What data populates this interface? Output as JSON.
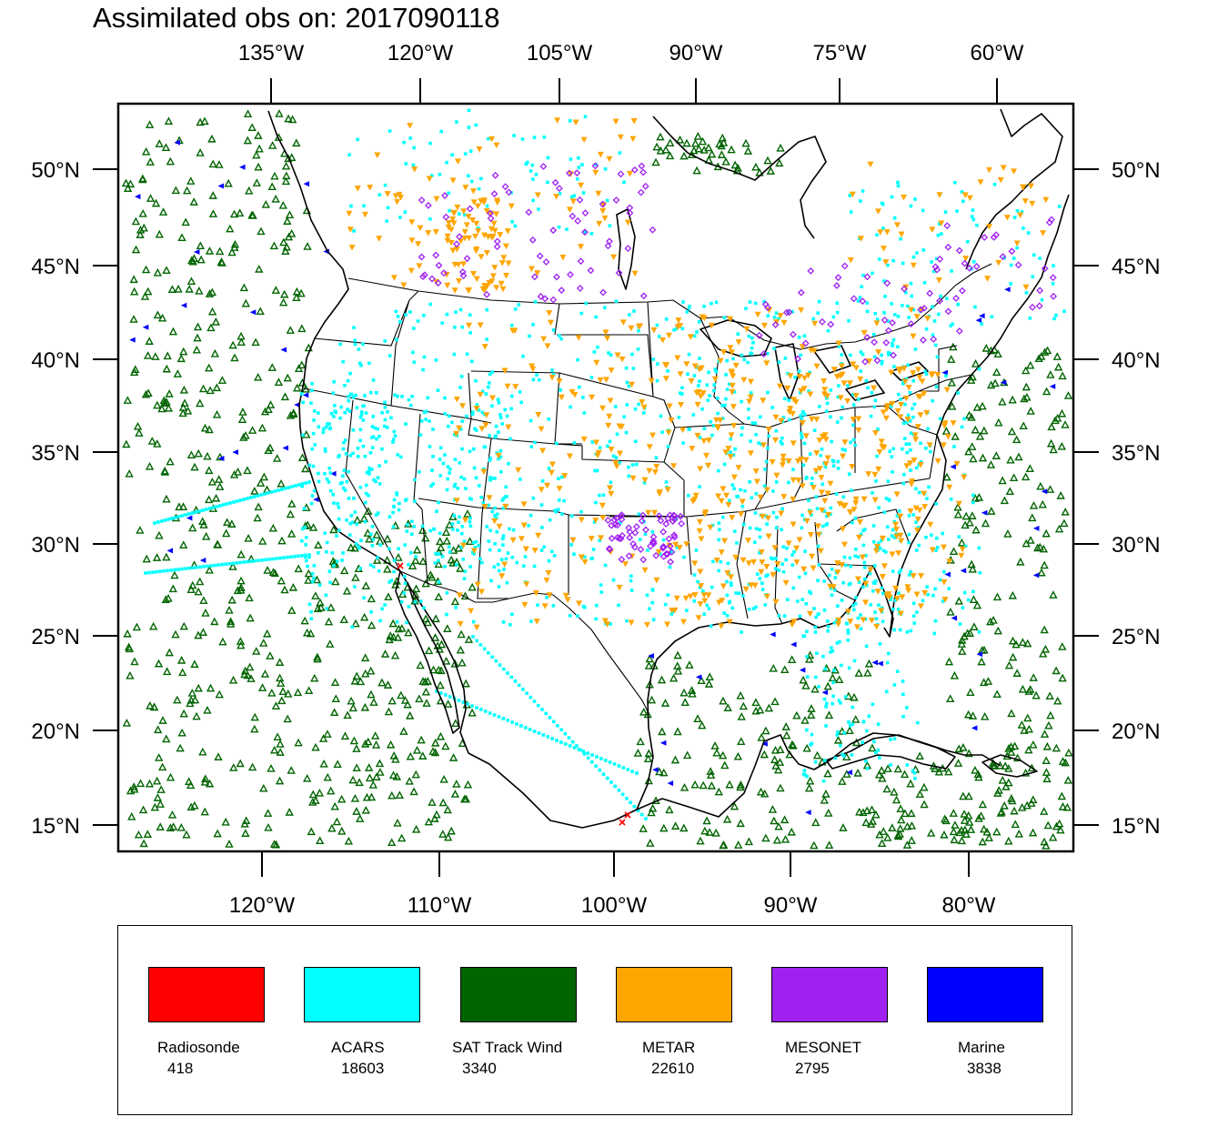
{
  "title": "Assimilated obs on: 2017090118",
  "axes": {
    "top_lon_labels": [
      "135°W",
      "120°W",
      "105°W",
      "90°W",
      "75°W",
      "60°W"
    ],
    "bottom_lon_labels": [
      "120°W",
      "110°W",
      "100°W",
      "90°W",
      "80°W"
    ],
    "left_lat_labels": [
      "50°N",
      "45°N",
      "40°N",
      "35°N",
      "30°N",
      "25°N",
      "20°N",
      "15°N"
    ],
    "right_lat_labels": [
      "50°N",
      "45°N",
      "40°N",
      "35°N",
      "30°N",
      "25°N",
      "20°N",
      "15°N"
    ]
  },
  "map": {
    "region": "Continental United States, Gulf of Mexico and adjacent Pacific / Atlantic",
    "projection": "Lambert conformal",
    "land_color": "#ffffff",
    "boundary_color": "#000000"
  },
  "legend": {
    "items": [
      {
        "name": "Radiosonde",
        "count": "418",
        "color": "#ff0000",
        "marker": "x-icon"
      },
      {
        "name": "ACARS",
        "count": "18603",
        "color": "#00ffff",
        "marker": "square-dot-icon"
      },
      {
        "name": "SAT Track Wind",
        "count": "3340",
        "color": "#006400",
        "marker": "triangle-up-icon"
      },
      {
        "name": "METAR",
        "count": "22610",
        "color": "#ffa500",
        "marker": "triangle-down-icon"
      },
      {
        "name": "MESONET",
        "count": "2795",
        "color": "#a020f0",
        "marker": "diamond-icon"
      },
      {
        "name": "Marine",
        "count": "3838",
        "color": "#0000ff",
        "marker": "triangle-left-icon"
      }
    ]
  }
}
